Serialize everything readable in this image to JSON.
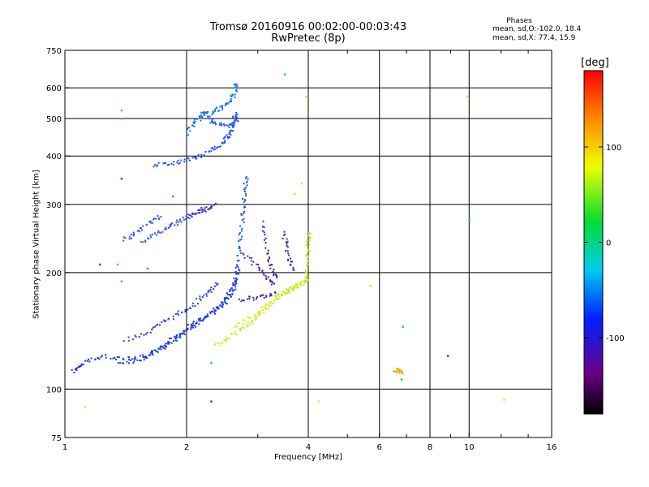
{
  "chart_data": {
    "type": "scatter",
    "title": "Tromsø 20160916 00:02:00-00:03:43",
    "subtitle": "RwPretec (8p)",
    "xlabel": "Frequency [MHz]",
    "ylabel": "Stationary phase Virtual Height [km]",
    "x_scale": "log",
    "y_scale": "log",
    "xlim": [
      1,
      16
    ],
    "ylim": [
      75,
      750
    ],
    "xticks": [
      1,
      2,
      4,
      6,
      8,
      10,
      16
    ],
    "xgrid": [
      2,
      4,
      6,
      8,
      10
    ],
    "x_minor_ticks": [
      3,
      5,
      7,
      9,
      12,
      14
    ],
    "yticks": [
      75,
      100,
      200,
      300,
      400,
      500,
      600,
      750
    ],
    "grid": true,
    "phases": {
      "title": "Phases",
      "o_stats": "mean, sd,O:-102.0, 18.4",
      "x_stats": "mean, sd,X: 77.4, 15.9"
    },
    "colorbar": {
      "label": "[deg]",
      "range": [
        -180,
        180
      ],
      "ticks": [
        100,
        0,
        -100
      ]
    },
    "traces": [
      {
        "color": "#2233dd",
        "points": [
          [
            1.04,
            112
          ],
          [
            1.08,
            114
          ],
          [
            1.12,
            118
          ],
          [
            1.18,
            120
          ],
          [
            1.25,
            122
          ],
          [
            1.35,
            121
          ],
          [
            1.45,
            121
          ],
          [
            1.55,
            122
          ],
          [
            1.62,
            124
          ],
          [
            1.7,
            127
          ],
          [
            1.78,
            131
          ],
          [
            1.85,
            136
          ],
          [
            1.92,
            140
          ],
          [
            2.0,
            145
          ],
          [
            2.08,
            149
          ],
          [
            2.18,
            153
          ],
          [
            2.28,
            157
          ],
          [
            2.38,
            163
          ],
          [
            2.45,
            168
          ],
          [
            2.5,
            173
          ],
          [
            2.55,
            178
          ],
          [
            2.6,
            184
          ],
          [
            2.63,
            190
          ],
          [
            2.65,
            197
          ],
          [
            2.68,
            205
          ]
        ]
      },
      {
        "color": "#2244ee",
        "points": [
          [
            1.35,
            116
          ],
          [
            1.45,
            118
          ],
          [
            1.52,
            120
          ],
          [
            1.62,
            123
          ],
          [
            1.72,
            127
          ],
          [
            1.8,
            131
          ],
          [
            1.88,
            135
          ],
          [
            1.95,
            139
          ],
          [
            2.02,
            143
          ],
          [
            2.1,
            148
          ],
          [
            2.2,
            153
          ],
          [
            2.3,
            158
          ],
          [
            2.4,
            163
          ],
          [
            2.48,
            169
          ],
          [
            2.55,
            175
          ],
          [
            2.6,
            182
          ],
          [
            2.64,
            190
          ]
        ]
      },
      {
        "color": "#2244ee",
        "points": [
          [
            1.4,
            135
          ],
          [
            1.52,
            138
          ],
          [
            1.62,
            142
          ],
          [
            1.72,
            147
          ],
          [
            1.82,
            153
          ],
          [
            1.92,
            158
          ],
          [
            2.02,
            163
          ],
          [
            2.12,
            170
          ],
          [
            2.22,
            176
          ],
          [
            2.3,
            182
          ],
          [
            2.38,
            188
          ]
        ]
      },
      {
        "color": "#1e55f0",
        "points": [
          [
            2.66,
            205
          ],
          [
            2.68,
            220
          ],
          [
            2.7,
            240
          ],
          [
            2.72,
            260
          ],
          [
            2.74,
            280
          ],
          [
            2.76,
            300
          ],
          [
            2.77,
            320
          ],
          [
            2.78,
            340
          ],
          [
            2.8,
            355
          ]
        ]
      },
      {
        "color": "#3355ee",
        "points": [
          [
            1.55,
            240
          ],
          [
            1.62,
            248
          ],
          [
            1.7,
            255
          ],
          [
            1.78,
            262
          ],
          [
            1.85,
            268
          ],
          [
            1.92,
            273
          ],
          [
            1.98,
            278
          ],
          [
            2.05,
            283
          ],
          [
            2.12,
            288
          ],
          [
            2.2,
            292
          ],
          [
            2.28,
            296
          ]
        ]
      },
      {
        "color": "#3355ee",
        "points": [
          [
            1.4,
            245
          ],
          [
            1.45,
            250
          ],
          [
            1.5,
            258
          ],
          [
            1.58,
            268
          ],
          [
            1.65,
            275
          ],
          [
            1.72,
            280
          ]
        ]
      },
      {
        "color": "#2255ee",
        "points": [
          [
            1.65,
            380
          ],
          [
            1.75,
            382
          ],
          [
            1.85,
            385
          ],
          [
            1.95,
            390
          ],
          [
            2.05,
            395
          ],
          [
            2.15,
            402
          ],
          [
            2.25,
            410
          ],
          [
            2.35,
            420
          ],
          [
            2.42,
            430
          ],
          [
            2.48,
            440
          ],
          [
            2.52,
            450
          ],
          [
            2.55,
            460
          ],
          [
            2.58,
            475
          ],
          [
            2.6,
            490
          ],
          [
            2.62,
            505
          ],
          [
            2.64,
            520
          ]
        ]
      },
      {
        "color": "#1a77ee",
        "points": [
          [
            2.0,
            460
          ],
          [
            2.05,
            480
          ],
          [
            2.1,
            495
          ],
          [
            2.15,
            505
          ],
          [
            2.2,
            512
          ],
          [
            2.28,
            520
          ],
          [
            2.35,
            528
          ],
          [
            2.42,
            535
          ],
          [
            2.5,
            545
          ],
          [
            2.56,
            560
          ],
          [
            2.6,
            580
          ],
          [
            2.63,
            600
          ],
          [
            2.65,
            615
          ]
        ]
      },
      {
        "color": "#2a66ee",
        "points": [
          [
            2.18,
            525
          ],
          [
            2.25,
            505
          ],
          [
            2.3,
            495
          ],
          [
            2.35,
            488
          ],
          [
            2.42,
            483
          ],
          [
            2.5,
            480
          ],
          [
            2.58,
            485
          ],
          [
            2.66,
            495
          ]
        ]
      },
      {
        "color": "#4422aa",
        "points": [
          [
            3.05,
            270
          ],
          [
            3.12,
            245
          ],
          [
            3.18,
            225
          ],
          [
            3.22,
            210
          ],
          [
            3.28,
            200
          ],
          [
            3.33,
            195
          ]
        ]
      },
      {
        "color": "#5522aa",
        "points": [
          [
            2.75,
            225
          ],
          [
            2.88,
            215
          ],
          [
            3.0,
            205
          ],
          [
            3.1,
            198
          ],
          [
            3.2,
            192
          ],
          [
            3.28,
            188
          ]
        ]
      },
      {
        "color": "#5522aa",
        "points": [
          [
            3.45,
            255
          ],
          [
            3.5,
            240
          ],
          [
            3.55,
            225
          ],
          [
            3.6,
            212
          ],
          [
            3.65,
            205
          ]
        ]
      },
      {
        "color": "#4422aa",
        "points": [
          [
            2.7,
            170
          ],
          [
            2.85,
            172
          ],
          [
            3.0,
            174
          ],
          [
            3.15,
            176
          ],
          [
            3.3,
            178
          ]
        ]
      },
      {
        "color": "#552299",
        "points": [
          [
            2.05,
            285
          ],
          [
            2.15,
            290
          ],
          [
            2.25,
            296
          ],
          [
            2.35,
            303
          ]
        ]
      },
      {
        "color": "#ccee22",
        "points": [
          [
            2.35,
            130
          ],
          [
            2.45,
            133
          ],
          [
            2.55,
            137
          ],
          [
            2.65,
            141
          ],
          [
            2.75,
            145
          ],
          [
            2.85,
            149
          ],
          [
            2.95,
            153
          ],
          [
            3.05,
            158
          ],
          [
            3.15,
            163
          ],
          [
            3.25,
            168
          ],
          [
            3.35,
            173
          ],
          [
            3.45,
            177
          ],
          [
            3.55,
            180
          ],
          [
            3.65,
            183
          ],
          [
            3.75,
            186
          ],
          [
            3.85,
            189
          ],
          [
            3.95,
            192
          ]
        ]
      },
      {
        "color": "#bbee22",
        "points": [
          [
            3.3,
            175
          ],
          [
            3.45,
            178
          ],
          [
            3.6,
            182
          ],
          [
            3.75,
            186
          ],
          [
            3.9,
            190
          ],
          [
            3.95,
            200
          ],
          [
            3.97,
            215
          ],
          [
            3.98,
            230
          ],
          [
            3.99,
            245
          ],
          [
            4.0,
            255
          ]
        ]
      },
      {
        "color": "#ddee22",
        "points": [
          [
            2.6,
            145
          ],
          [
            2.75,
            150
          ],
          [
            2.9,
            156
          ],
          [
            3.05,
            162
          ],
          [
            3.2,
            168
          ]
        ]
      },
      {
        "color": "#eeaa11",
        "points": [
          [
            6.5,
            113
          ],
          [
            6.6,
            112
          ],
          [
            6.7,
            112
          ],
          [
            6.8,
            111
          ]
        ]
      }
    ],
    "isolated_points": [
      {
        "x": 1.12,
        "y": 90,
        "color": "#ddee22"
      },
      {
        "x": 1.38,
        "y": 525,
        "color": "#ee8811"
      },
      {
        "x": 1.38,
        "y": 500,
        "color": "#ee8811"
      },
      {
        "x": 1.38,
        "y": 350,
        "color": "#2255ee"
      },
      {
        "x": 1.35,
        "y": 210,
        "color": "#ee8811"
      },
      {
        "x": 1.38,
        "y": 190,
        "color": "#ee8811"
      },
      {
        "x": 1.22,
        "y": 210,
        "color": "#2255ee"
      },
      {
        "x": 1.6,
        "y": 205,
        "color": "#22cc22"
      },
      {
        "x": 2.3,
        "y": 93,
        "color": "#aa2266"
      },
      {
        "x": 2.3,
        "y": 117,
        "color": "#22bbee"
      },
      {
        "x": 3.5,
        "y": 650,
        "color": "#22bbee"
      },
      {
        "x": 3.9,
        "y": 600,
        "color": "#22bbee"
      },
      {
        "x": 3.95,
        "y": 570,
        "color": "#ccee22"
      },
      {
        "x": 3.85,
        "y": 340,
        "color": "#ddee22"
      },
      {
        "x": 3.7,
        "y": 320,
        "color": "#ccee22"
      },
      {
        "x": 4.25,
        "y": 93,
        "color": "#ddee22"
      },
      {
        "x": 5.7,
        "y": 185,
        "color": "#bbee22"
      },
      {
        "x": 6.85,
        "y": 145,
        "color": "#22bbee"
      },
      {
        "x": 6.8,
        "y": 106,
        "color": "#22cc22"
      },
      {
        "x": 8.85,
        "y": 122,
        "color": "#2244cc"
      },
      {
        "x": 9.9,
        "y": 570,
        "color": "#ccee22"
      },
      {
        "x": 10.0,
        "y": 275,
        "color": "#22bbee"
      },
      {
        "x": 12.2,
        "y": 94,
        "color": "#ddee22"
      },
      {
        "x": 1.85,
        "y": 315,
        "color": "#22cc22"
      }
    ]
  }
}
